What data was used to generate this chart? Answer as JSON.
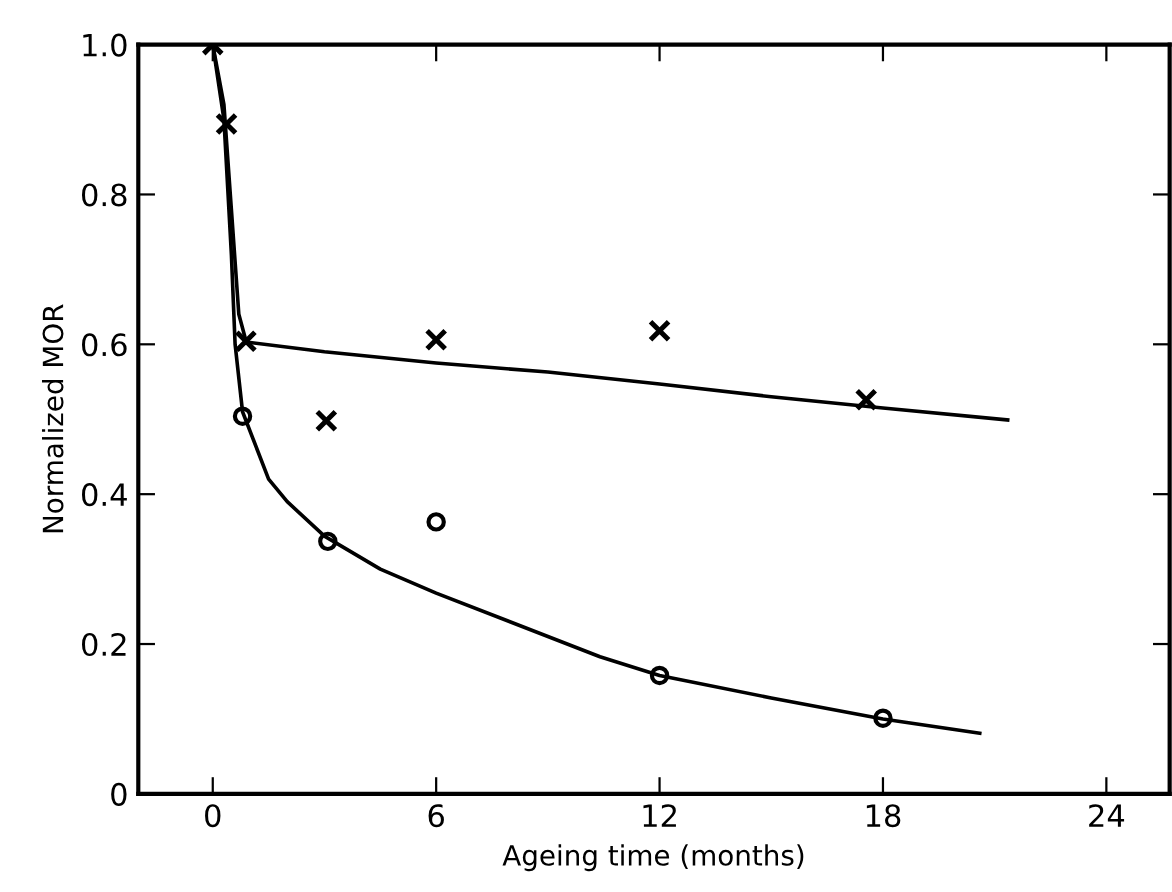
{
  "chart_data": {
    "type": "scatter",
    "xlabel": "Ageing time (months)",
    "ylabel": "Normalized MOR",
    "xlim": [
      -2,
      25.7
    ],
    "ylim": [
      0,
      1.0
    ],
    "xticks": [
      0,
      6,
      12,
      18,
      24
    ],
    "yticks": [
      {
        "value": 0,
        "label": "0"
      },
      0.2,
      0.4,
      0.6,
      0.8,
      {
        "value": 1.0,
        "label": "1.0"
      }
    ],
    "grid": false,
    "legend": false,
    "series": [
      {
        "marker": "cross",
        "color": "#000000",
        "x": [
          0,
          0.37,
          0.89,
          3.05,
          6.0,
          12.0,
          17.55
        ],
        "values": [
          1.0,
          0.894,
          0.604,
          0.498,
          0.606,
          0.618,
          0.526
        ]
      },
      {
        "marker": "circle",
        "color": "#000000",
        "x": [
          0.8,
          3.09,
          6.0,
          12.0,
          18.0
        ],
        "values": [
          0.504,
          0.337,
          0.363,
          0.158,
          0.101
        ]
      },
      {
        "type": "line",
        "marker": "none",
        "line_style": "solid",
        "color": "#000000",
        "x": [
          0,
          0.3,
          0.5,
          0.7,
          0.9,
          3,
          6,
          9,
          12,
          15,
          18,
          21.35
        ],
        "values": [
          1.0,
          0.92,
          0.78,
          0.64,
          0.603,
          0.59,
          0.575,
          0.563,
          0.547,
          0.53,
          0.515,
          0.499
        ]
      },
      {
        "type": "line",
        "marker": "none",
        "line_style": "solid",
        "color": "#000000",
        "x": [
          0,
          0.3,
          0.5,
          0.6,
          0.8,
          1.5,
          2,
          3,
          4.5,
          6,
          10.4,
          12,
          15,
          18,
          20.6
        ],
        "values": [
          1.0,
          0.9,
          0.72,
          0.6,
          0.51,
          0.42,
          0.39,
          0.344,
          0.3,
          0.268,
          0.183,
          0.158,
          0.128,
          0.1,
          0.081
        ]
      }
    ]
  }
}
